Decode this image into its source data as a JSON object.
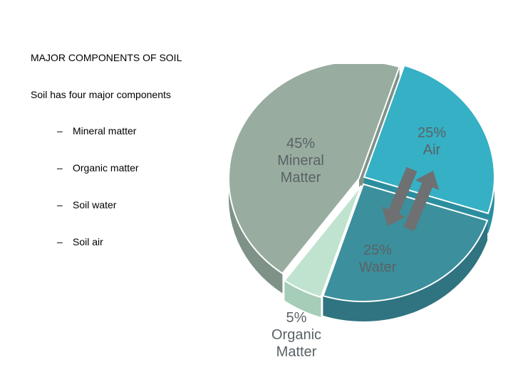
{
  "slide": {
    "title": "MAJOR COMPONENTS OF SOIL",
    "subtitle": "Soil has four major components",
    "bullet_marker": "–",
    "bullets": [
      "Mineral matter",
      "Organic matter",
      "Soil water",
      "Soil air"
    ]
  },
  "chart_data": {
    "type": "pie",
    "title": "",
    "slices": [
      {
        "label_pct": "45%",
        "label_line1": "Mineral",
        "label_line2": "Matter",
        "value": 45,
        "color": "#98ada0"
      },
      {
        "label_pct": "25%",
        "label_line1": "Air",
        "label_line2": "",
        "value": 25,
        "color": "#35b0c5"
      },
      {
        "label_pct": "25%",
        "label_line1": "Water",
        "label_line2": "",
        "value": 25,
        "color": "#3c8f9c"
      },
      {
        "label_pct": "5%",
        "label_line1": "Organic",
        "label_line2": "Matter",
        "value": 5,
        "color": "#bfe3cf"
      }
    ],
    "colors": {
      "mineral_side": "#7f9288",
      "air_side": "#2b8e9e",
      "water_side": "#2f7480",
      "organic_side": "#a6cdb7",
      "arrows": "#6e7072",
      "label_text": "#5a6266"
    },
    "annotation": "arrows between Air and Water"
  }
}
